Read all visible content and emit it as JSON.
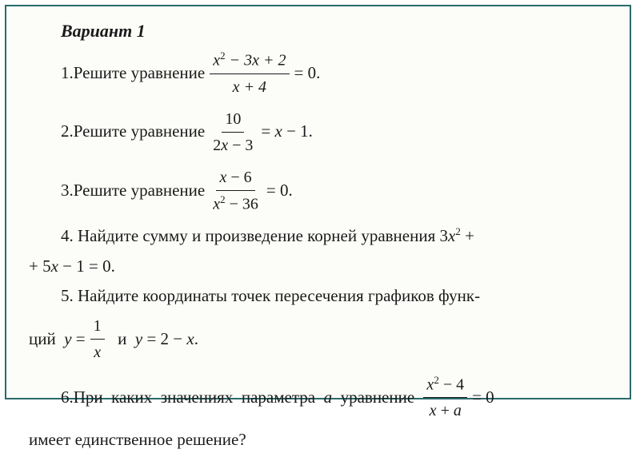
{
  "title": "Вариант 1",
  "problems": {
    "p1": {
      "num": "1. ",
      "text": "Решите уравнение ",
      "frac_num": "x² − 3x + 2",
      "frac_den": "x + 4",
      "tail": " = 0."
    },
    "p2": {
      "num": "2. ",
      "text": "Решите уравнение ",
      "frac_num": "10",
      "frac_den": "2x − 3",
      "tail": " = x − 1."
    },
    "p3": {
      "num": "3. ",
      "text": "Решите уравнение ",
      "frac_num": "x − 6",
      "frac_den": "x² − 36",
      "tail": " = 0."
    },
    "p4": {
      "num": "4. ",
      "text1": "Найдите сумму и произведение корней уравнения 3",
      "text2": " +",
      "line2": "+ 5x − 1 = 0."
    },
    "p5": {
      "num": "5. ",
      "text1": "Найдите координаты точек пересечения графиков функ-",
      "line2a": "ций  y = ",
      "frac_num": "1",
      "frac_den": "x",
      "line2b": "  и  y = 2 − x."
    },
    "p6": {
      "num": "6. ",
      "text1": "При  каких  значениях  параметра  a  уравнение ",
      "frac_num": "x² − 4",
      "frac_den": "x + a",
      "tail": " = 0",
      "line2": "имеет единственное решение?"
    }
  },
  "colors": {
    "border": "#2a6b6b",
    "bg": "#fcfcf8",
    "text": "#1a1a1a"
  }
}
